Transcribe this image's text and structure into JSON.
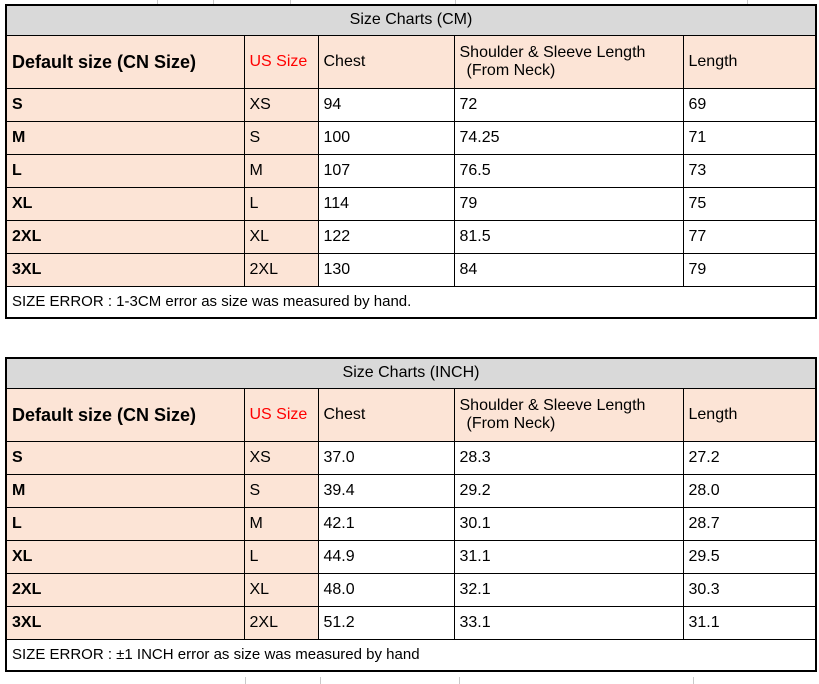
{
  "colors": {
    "header_fill": "#FCE4D6",
    "title_fill": "#D9D9D9",
    "us_size_red": "#FF0000",
    "border": "#000000",
    "gridline_artifact": "#C9C9C9"
  },
  "tables": [
    {
      "id": "cm",
      "title": "Size Charts (CM)",
      "headers": {
        "default_size": "Default size (CN Size)",
        "us_size": "US Size",
        "chest": "Chest",
        "shoulder_line1": "Shoulder & Sleeve Length",
        "shoulder_line2": "(From Neck)",
        "length": "Length"
      },
      "rows": [
        [
          "S",
          "XS",
          "94",
          "72",
          "69"
        ],
        [
          "M",
          "S",
          "100",
          "74.25",
          "71"
        ],
        [
          "L",
          "M",
          "107",
          "76.5",
          "73"
        ],
        [
          "XL",
          "L",
          "114",
          "79",
          "75"
        ],
        [
          "2XL",
          "XL",
          "122",
          "81.5",
          "77"
        ],
        [
          "3XL",
          "2XL",
          "130",
          "84",
          "79"
        ]
      ],
      "footer": "SIZE ERROR : 1-3CM error as size was measured by hand."
    },
    {
      "id": "inch",
      "title": "Size Charts (INCH)",
      "headers": {
        "default_size": "Default size (CN Size)",
        "us_size": "US Size",
        "chest": "Chest",
        "shoulder_line1": "Shoulder & Sleeve Length",
        "shoulder_line2": "(From Neck)",
        "length": "Length"
      },
      "rows": [
        [
          "S",
          "XS",
          "37.0",
          "28.3",
          "27.2"
        ],
        [
          "M",
          "S",
          "39.4",
          "29.2",
          "28.0"
        ],
        [
          "L",
          "M",
          "42.1",
          "30.1",
          "28.7"
        ],
        [
          "XL",
          "L",
          "44.9",
          "31.1",
          "29.5"
        ],
        [
          "2XL",
          "XL",
          "48.0",
          "32.1",
          "30.3"
        ],
        [
          "3XL",
          "2XL",
          "51.2",
          "33.1",
          "31.1"
        ]
      ],
      "footer": "SIZE ERROR : ±1 INCH error as size was measured by hand"
    }
  ]
}
